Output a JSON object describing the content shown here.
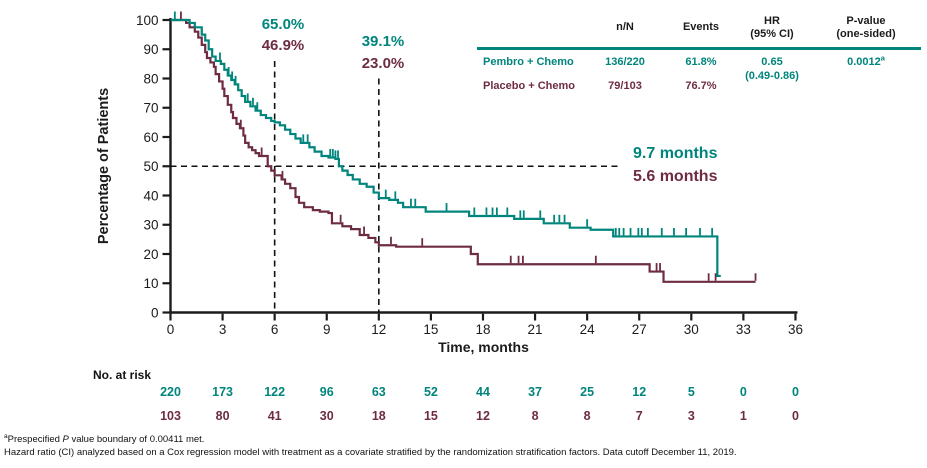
{
  "chart_data": {
    "type": "line",
    "subtype": "kaplan-meier",
    "title": "",
    "xlabel": "Time, months",
    "ylabel": "Percentage of Patients",
    "xlim": [
      0,
      36
    ],
    "ylim": [
      0,
      100
    ],
    "xticks": [
      0,
      3,
      6,
      9,
      12,
      15,
      18,
      21,
      24,
      27,
      30,
      33,
      36
    ],
    "yticks": [
      0,
      10,
      20,
      30,
      40,
      50,
      60,
      70,
      80,
      90,
      100
    ],
    "grid": false,
    "series": [
      {
        "name": "Pembro + Chemo",
        "color": "#00857C",
        "median_months": 9.7,
        "rate_6mo_pct": 65.0,
        "rate_12mo_pct": 39.1,
        "steps": [
          [
            0,
            100
          ],
          [
            1.1,
            99
          ],
          [
            1.4,
            97.5
          ],
          [
            1.8,
            95
          ],
          [
            2,
            93
          ],
          [
            2.2,
            90
          ],
          [
            2.4,
            87.5
          ],
          [
            2.6,
            86
          ],
          [
            2.9,
            85
          ],
          [
            3.1,
            83
          ],
          [
            3.3,
            81
          ],
          [
            3.5,
            79.5
          ],
          [
            3.7,
            78
          ],
          [
            3.9,
            76
          ],
          [
            4.1,
            74
          ],
          [
            4.3,
            72
          ],
          [
            4.6,
            70.5
          ],
          [
            4.9,
            69
          ],
          [
            5.2,
            67.5
          ],
          [
            5.5,
            66.5
          ],
          [
            5.8,
            65.5
          ],
          [
            6,
            65
          ],
          [
            6.3,
            64
          ],
          [
            6.6,
            62.5
          ],
          [
            6.9,
            61
          ],
          [
            7.2,
            59.5
          ],
          [
            7.5,
            58
          ],
          [
            8,
            56.5
          ],
          [
            8.3,
            55
          ],
          [
            8.7,
            53.5
          ],
          [
            9.1,
            53
          ],
          [
            9.5,
            52.5
          ],
          [
            9.7,
            50
          ],
          [
            9.9,
            48.5
          ],
          [
            10.2,
            47
          ],
          [
            10.5,
            45.5
          ],
          [
            10.9,
            44
          ],
          [
            11.3,
            43
          ],
          [
            11.7,
            41
          ],
          [
            12,
            39.1
          ],
          [
            12.6,
            38.5
          ],
          [
            13.1,
            37.5
          ],
          [
            13.4,
            36
          ],
          [
            14.7,
            34.5
          ],
          [
            17.2,
            33
          ],
          [
            19.8,
            32
          ],
          [
            21.5,
            30.5
          ],
          [
            23,
            29
          ],
          [
            24.2,
            28.3
          ],
          [
            25.5,
            26
          ],
          [
            31.5,
            12.5
          ],
          [
            31.7,
            12.5
          ]
        ],
        "censor_months": [
          0.25,
          2.85,
          3.35,
          3.55,
          3.75,
          4.45,
          4.75,
          5,
          7.65,
          7.9,
          9.2,
          9.35,
          9.5,
          9.65,
          12.4,
          12.95,
          13.85,
          14.1,
          15.9,
          17.5,
          18.2,
          18.55,
          18.8,
          19.4,
          20.15,
          20.35,
          21.3,
          22.1,
          22.4,
          22.7,
          24,
          25.65,
          25.85,
          26.1,
          26.5,
          26.95,
          27.15,
          27.5,
          28.3,
          29,
          29.7,
          30.5,
          31.2
        ]
      },
      {
        "name": "Placebo + Chemo",
        "color": "#6E2C44",
        "median_months": 5.6,
        "rate_6mo_pct": 46.9,
        "rate_12mo_pct": 23.0,
        "steps": [
          [
            0,
            100
          ],
          [
            0.9,
            99
          ],
          [
            1.1,
            97.5
          ],
          [
            1.4,
            96
          ],
          [
            1.6,
            94
          ],
          [
            1.8,
            91.5
          ],
          [
            2,
            89
          ],
          [
            2.1,
            87
          ],
          [
            2.3,
            85.5
          ],
          [
            2.5,
            84
          ],
          [
            2.6,
            81.5
          ],
          [
            2.8,
            79
          ],
          [
            3,
            76.5
          ],
          [
            3.1,
            74
          ],
          [
            3.3,
            71
          ],
          [
            3.5,
            68.5
          ],
          [
            3.6,
            66.5
          ],
          [
            3.8,
            64.5
          ],
          [
            4,
            63
          ],
          [
            4.2,
            60.5
          ],
          [
            4.3,
            58
          ],
          [
            4.5,
            56.5
          ],
          [
            4.7,
            55.5
          ],
          [
            4.9,
            54.5
          ],
          [
            5.1,
            53.5
          ],
          [
            5.6,
            50
          ],
          [
            5.8,
            48.5
          ],
          [
            6,
            46.9
          ],
          [
            6.4,
            45.5
          ],
          [
            6.6,
            44
          ],
          [
            6.9,
            42.5
          ],
          [
            7.2,
            39.5
          ],
          [
            7.4,
            37.5
          ],
          [
            7.7,
            36
          ],
          [
            8.2,
            35
          ],
          [
            8.6,
            34.5
          ],
          [
            9.1,
            34
          ],
          [
            9.3,
            30.5
          ],
          [
            9.9,
            29.5
          ],
          [
            10.4,
            28.5
          ],
          [
            10.9,
            26.5
          ],
          [
            11.4,
            25.5
          ],
          [
            11.8,
            24
          ],
          [
            12,
            23
          ],
          [
            13,
            22.5
          ],
          [
            17.3,
            20
          ],
          [
            17.7,
            16.5
          ],
          [
            27.6,
            14
          ],
          [
            28.4,
            10.5
          ],
          [
            33.7,
            10.5
          ]
        ],
        "censor_months": [
          0.6,
          4.05,
          5.25,
          6.45,
          9.8,
          11.15,
          12.7,
          14.5,
          19.6,
          20.05,
          20.3,
          24.5,
          28,
          28.2,
          31,
          31.4,
          33.7
        ]
      }
    ],
    "reference_lines": [
      {
        "orientation": "horizontal",
        "pct": 50,
        "from_month": 0,
        "to_month": 25.9
      },
      {
        "orientation": "vertical",
        "month": 6,
        "from_pct": 86,
        "to_pct": 0
      },
      {
        "orientation": "vertical",
        "month": 12,
        "from_pct": 80,
        "to_pct": 0
      }
    ],
    "at_risk": {
      "months": [
        0,
        3,
        6,
        9,
        12,
        15,
        18,
        21,
        24,
        27,
        30,
        33,
        36
      ],
      "pembro": [
        220,
        173,
        122,
        96,
        63,
        52,
        44,
        37,
        25,
        12,
        5,
        0,
        0
      ],
      "placebo": [
        103,
        80,
        41,
        30,
        18,
        15,
        12,
        8,
        8,
        7,
        3,
        1,
        0
      ]
    }
  },
  "annotations": {
    "landmark_6mo": {
      "pembro": "65.0%",
      "placebo": "46.9%"
    },
    "landmark_12mo": {
      "pembro": "39.1%",
      "placebo": "23.0%"
    },
    "median": {
      "pembro": "9.7 months",
      "placebo": "5.6 months"
    }
  },
  "summary_table": {
    "headers": {
      "n_over_N": "n/N",
      "events": "Events",
      "hr_line1": "HR",
      "hr_line2": "(95% CI)",
      "p_line1": "P-value",
      "p_line2": "(one-sided)"
    },
    "rows": [
      {
        "label": "Pembro + Chemo",
        "n_over_N": "136/220",
        "events": "61.8%",
        "hr": "0.65",
        "hr_ci": "(0.49-0.86)",
        "p_value": "0.0012",
        "p_sup": "a"
      },
      {
        "label": "Placebo + Chemo",
        "n_over_N": "79/103",
        "events": "76.7%"
      }
    ]
  },
  "risk_table": {
    "label": "No. at risk"
  },
  "footnotes": {
    "line1_sup": "a",
    "line1_pre": "Prespecified ",
    "line1_italic": "P",
    "line1_post": " value boundary of 0.00411 met.",
    "line2": "Hazard ratio (CI) analyzed based on a Cox regression model with treatment as a covariate stratified by the randomization stratification factors. Data cutoff December 11, 2019."
  },
  "colors": {
    "pembro": "#00857C",
    "placebo": "#6E2C44",
    "axis": "#1b1b1b"
  }
}
